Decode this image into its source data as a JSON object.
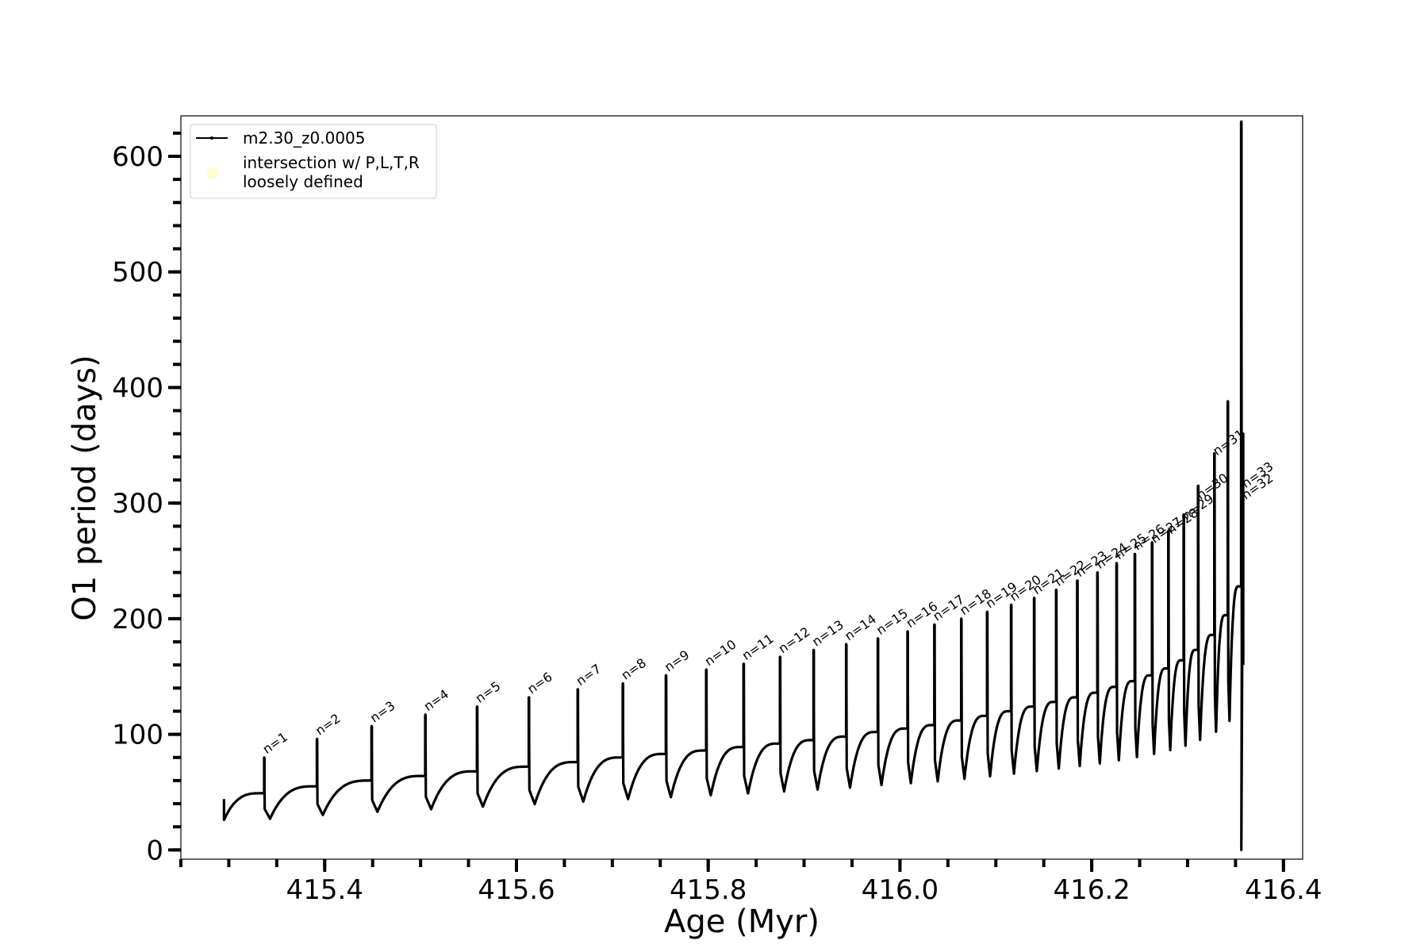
{
  "chart_data": {
    "type": "line",
    "xlabel": "Age (Myr)",
    "ylabel": "O1 period (days)",
    "xlim": [
      415.25,
      416.42
    ],
    "ylim": [
      -8,
      635
    ],
    "x_ticks": [
      415.4,
      415.6,
      415.8,
      416.0,
      416.2,
      416.4
    ],
    "x_tick_labels": [
      "415.4",
      "415.6",
      "415.8",
      "416.0",
      "416.2",
      "416.4"
    ],
    "x_minor_step": 0.05,
    "y_ticks": [
      0,
      100,
      200,
      300,
      400,
      500,
      600
    ],
    "y_tick_labels": [
      "0",
      "100",
      "200",
      "300",
      "400",
      "500",
      "600"
    ],
    "y_minor_step": 20,
    "grid": false,
    "legend": {
      "placement": "upper-left",
      "entries": [
        {
          "label": "m2.30_z0.0005",
          "color": "#000000",
          "marker": "line"
        },
        {
          "label_lines": [
            "intersection w/ P,L,T,R",
            "loosely defined"
          ],
          "color": "#fefecb",
          "marker": "circle"
        }
      ]
    },
    "series": [
      {
        "name": "m2.30_z0.0005",
        "color": "#000000",
        "start": {
          "x": 415.295,
          "y": 26
        },
        "pulses": [
          {
            "n": 1,
            "x": 415.337,
            "base": 49,
            "peak": 80
          },
          {
            "n": 2,
            "x": 415.392,
            "base": 55,
            "peak": 96
          },
          {
            "n": 3,
            "x": 415.449,
            "base": 60,
            "peak": 107
          },
          {
            "n": 4,
            "x": 415.505,
            "base": 64,
            "peak": 117
          },
          {
            "n": 5,
            "x": 415.559,
            "base": 68,
            "peak": 124
          },
          {
            "n": 6,
            "x": 415.613,
            "base": 72,
            "peak": 132
          },
          {
            "n": 7,
            "x": 415.664,
            "base": 76,
            "peak": 139
          },
          {
            "n": 8,
            "x": 415.711,
            "base": 80,
            "peak": 144
          },
          {
            "n": 9,
            "x": 415.756,
            "base": 83,
            "peak": 151
          },
          {
            "n": 10,
            "x": 415.798,
            "base": 86,
            "peak": 156
          },
          {
            "n": 11,
            "x": 415.837,
            "base": 89,
            "peak": 161
          },
          {
            "n": 12,
            "x": 415.875,
            "base": 92,
            "peak": 167
          },
          {
            "n": 13,
            "x": 415.91,
            "base": 95,
            "peak": 173
          },
          {
            "n": 14,
            "x": 415.944,
            "base": 98,
            "peak": 178
          },
          {
            "n": 15,
            "x": 415.977,
            "base": 102,
            "peak": 183
          },
          {
            "n": 16,
            "x": 416.008,
            "base": 105,
            "peak": 189
          },
          {
            "n": 17,
            "x": 416.036,
            "base": 108,
            "peak": 195
          },
          {
            "n": 18,
            "x": 416.064,
            "base": 112,
            "peak": 200
          },
          {
            "n": 19,
            "x": 416.091,
            "base": 116,
            "peak": 206
          },
          {
            "n": 20,
            "x": 416.116,
            "base": 120,
            "peak": 212
          },
          {
            "n": 21,
            "x": 416.14,
            "base": 124,
            "peak": 218
          },
          {
            "n": 22,
            "x": 416.163,
            "base": 128,
            "peak": 225
          },
          {
            "n": 23,
            "x": 416.185,
            "base": 132,
            "peak": 233
          },
          {
            "n": 24,
            "x": 416.206,
            "base": 136,
            "peak": 240
          },
          {
            "n": 25,
            "x": 416.226,
            "base": 141,
            "peak": 248
          },
          {
            "n": 26,
            "x": 416.245,
            "base": 146,
            "peak": 256
          },
          {
            "n": 27,
            "x": 416.263,
            "base": 151,
            "peak": 266
          },
          {
            "n": 28,
            "x": 416.28,
            "base": 157,
            "peak": 276
          },
          {
            "n": 29,
            "x": 416.296,
            "base": 164,
            "peak": 290
          },
          {
            "n": 30,
            "x": 416.311,
            "base": 173,
            "peak": 315
          },
          {
            "n": 31,
            "x": 416.328,
            "base": 186,
            "peak": 343
          },
          {
            "n": 32,
            "x": 416.342,
            "base": 203,
            "peak": 388
          },
          {
            "n": 33,
            "x": 416.356,
            "base": 228,
            "peak": 630
          }
        ],
        "tail": [
          {
            "x": 416.356,
            "y": 0
          },
          {
            "x": 416.358,
            "y": 360
          },
          {
            "x": 416.358,
            "y": 160
          }
        ]
      }
    ],
    "annotations": [
      {
        "text": "n=1",
        "x": 415.337,
        "y": 80
      },
      {
        "text": "n=2",
        "x": 415.392,
        "y": 96
      },
      {
        "text": "n=3",
        "x": 415.449,
        "y": 107
      },
      {
        "text": "n=4",
        "x": 415.505,
        "y": 117
      },
      {
        "text": "n=5",
        "x": 415.559,
        "y": 124
      },
      {
        "text": "n=6",
        "x": 415.613,
        "y": 132
      },
      {
        "text": "n=7",
        "x": 415.664,
        "y": 139
      },
      {
        "text": "n=8",
        "x": 415.711,
        "y": 144
      },
      {
        "text": "n=9",
        "x": 415.756,
        "y": 151
      },
      {
        "text": "n=10",
        "x": 415.798,
        "y": 156
      },
      {
        "text": "n=11",
        "x": 415.837,
        "y": 161
      },
      {
        "text": "n=12",
        "x": 415.875,
        "y": 167
      },
      {
        "text": "n=13",
        "x": 415.91,
        "y": 173
      },
      {
        "text": "n=14",
        "x": 415.944,
        "y": 178
      },
      {
        "text": "n=15",
        "x": 415.977,
        "y": 183
      },
      {
        "text": "n=16",
        "x": 416.008,
        "y": 189
      },
      {
        "text": "n=17",
        "x": 416.036,
        "y": 195
      },
      {
        "text": "n=18",
        "x": 416.064,
        "y": 200
      },
      {
        "text": "n=19",
        "x": 416.091,
        "y": 206
      },
      {
        "text": "n=20",
        "x": 416.116,
        "y": 212
      },
      {
        "text": "n=21",
        "x": 416.14,
        "y": 218
      },
      {
        "text": "n=22",
        "x": 416.163,
        "y": 225
      },
      {
        "text": "n=23",
        "x": 416.185,
        "y": 233
      },
      {
        "text": "n=24",
        "x": 416.206,
        "y": 240
      },
      {
        "text": "n=25",
        "x": 416.226,
        "y": 248
      },
      {
        "text": "n=26",
        "x": 416.245,
        "y": 256
      },
      {
        "text": "n=27",
        "x": 416.263,
        "y": 262
      },
      {
        "text": "n=28",
        "x": 416.28,
        "y": 270
      },
      {
        "text": "n=29",
        "x": 416.296,
        "y": 282
      },
      {
        "text": "n=30",
        "x": 416.311,
        "y": 300
      },
      {
        "text": "n=31",
        "x": 416.328,
        "y": 338
      },
      {
        "text": "n=32",
        "x": 416.358,
        "y": 300
      },
      {
        "text": "n=33",
        "x": 416.358,
        "y": 310
      }
    ]
  }
}
